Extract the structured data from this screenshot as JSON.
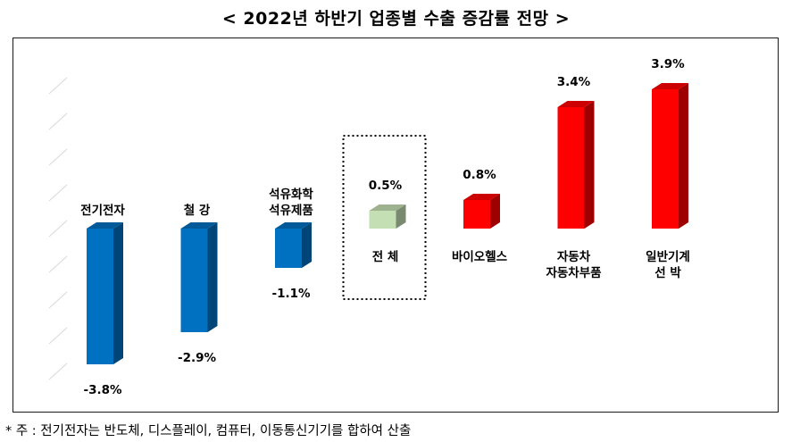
{
  "title": "< 2022년 하반기 업종별 수출 증감률 전망 >",
  "footnote": "* 주 : 전기전자는 반도체, 디스플레이, 컴퓨터, 이동통신기기를 합하여 산출",
  "colors": {
    "negative": "#0070c0",
    "total": "#c5dfb4",
    "positive": "#ff0000",
    "gridline": "#d9d9d9"
  },
  "chart_data": {
    "type": "bar",
    "title": "< 2022년 하반기 업종별 수출 증감률 전망 >",
    "style": "3d-column",
    "grid": true,
    "legend": "none",
    "ylim": [
      -4,
      4
    ],
    "categories": [
      [
        "전기전자"
      ],
      [
        "철 강"
      ],
      [
        "석유화학",
        "석유제품"
      ],
      [
        "전 체"
      ],
      [
        "바이오헬스"
      ],
      [
        "자동차",
        "자동차부품"
      ],
      [
        "일반기계",
        "선  박"
      ]
    ],
    "values": [
      -3.8,
      -2.9,
      -1.1,
      0.5,
      0.8,
      3.4,
      3.9
    ],
    "data_labels": [
      "-3.8%",
      "-2.9%",
      "-1.1%",
      "0.5%",
      "0.8%",
      "3.4%",
      "3.9%"
    ],
    "highlighted_category_index": 3
  }
}
